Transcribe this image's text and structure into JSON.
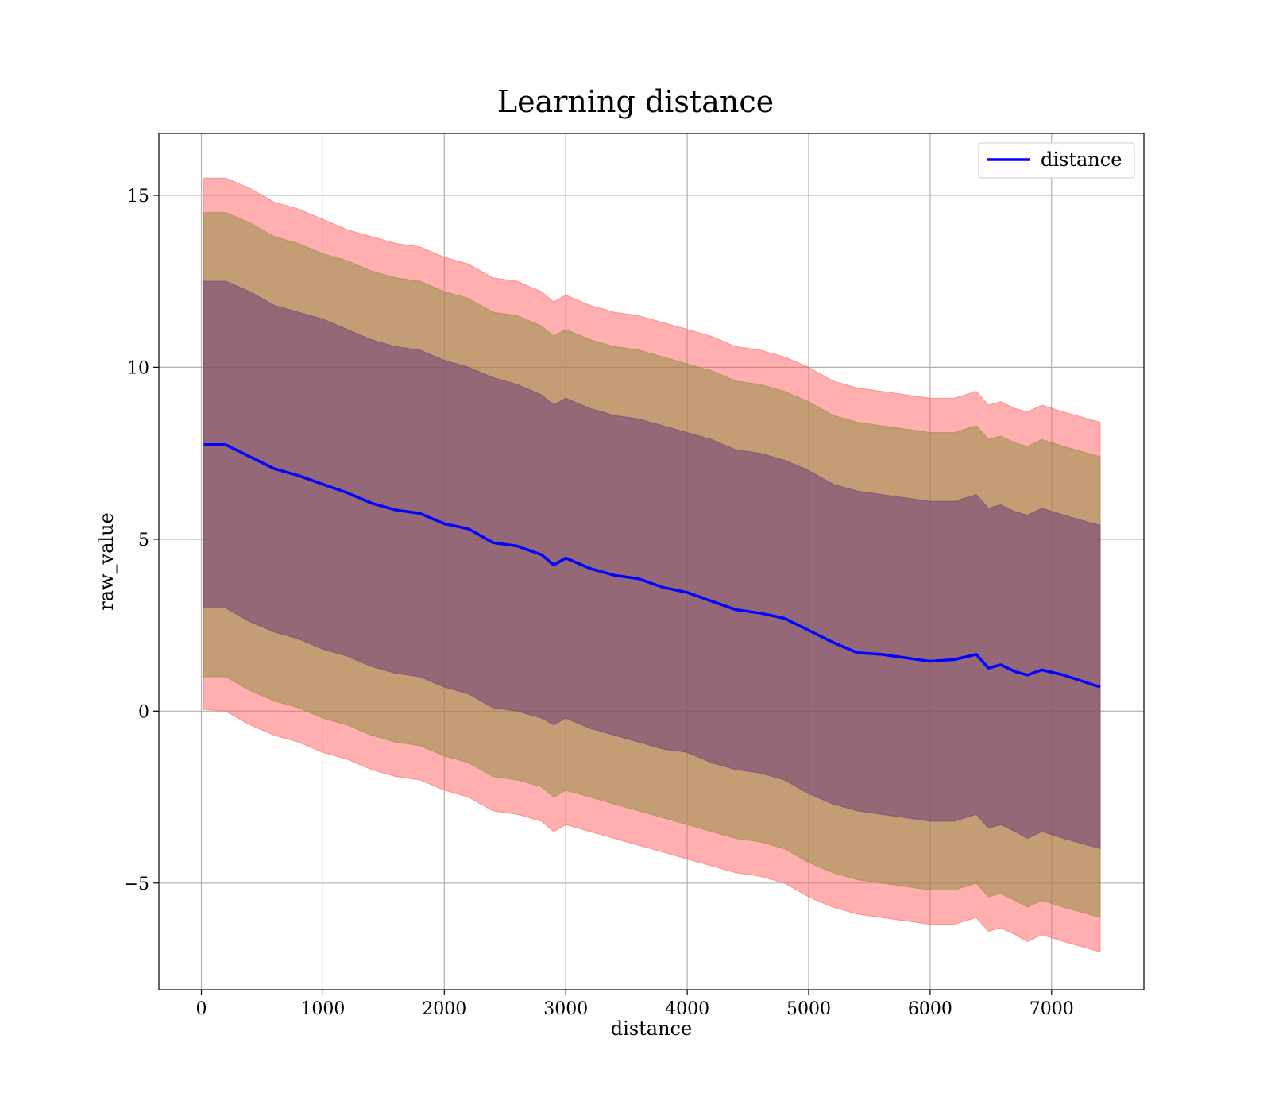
{
  "chart_data": {
    "type": "area",
    "title": "Learning distance",
    "xlabel": "distance",
    "ylabel": "raw_value",
    "xlim": [
      -350,
      7760
    ],
    "ylim": [
      -8.1,
      16.8
    ],
    "xticks": [
      0,
      1000,
      2000,
      3000,
      4000,
      5000,
      6000,
      7000
    ],
    "xtick_labels": [
      "0",
      "1000",
      "2000",
      "3000",
      "4000",
      "5000",
      "6000",
      "7000"
    ],
    "yticks": [
      -5,
      0,
      5,
      10,
      15
    ],
    "ytick_labels": [
      "−5",
      "0",
      "5",
      "10",
      "15"
    ],
    "grid": true,
    "legend": {
      "placement": "top-right",
      "entries": [
        "distance"
      ]
    },
    "colors": {
      "line": "#0000ff",
      "band_outer": "#ff6060",
      "band_middle": "#8c8c3c",
      "band_inner": "#6e3c78",
      "grid": "#b0b0b0"
    },
    "x": [
      20,
      200,
      400,
      600,
      800,
      1000,
      1200,
      1400,
      1600,
      1800,
      2000,
      2200,
      2400,
      2600,
      2800,
      2900,
      3000,
      3200,
      3400,
      3600,
      3800,
      4000,
      4200,
      4400,
      4600,
      4800,
      5000,
      5200,
      5400,
      5600,
      5800,
      6000,
      6200,
      6380,
      6480,
      6580,
      6700,
      6800,
      6920,
      7100,
      7400
    ],
    "series": [
      {
        "name": "distance",
        "values": [
          7.75,
          7.75,
          7.4,
          7.05,
          6.85,
          6.6,
          6.35,
          6.05,
          5.85,
          5.75,
          5.45,
          5.3,
          4.9,
          4.8,
          4.55,
          4.25,
          4.45,
          4.15,
          3.95,
          3.85,
          3.6,
          3.45,
          3.2,
          2.95,
          2.85,
          2.7,
          2.35,
          2.0,
          1.7,
          1.65,
          1.55,
          1.45,
          1.5,
          1.65,
          1.25,
          1.35,
          1.15,
          1.05,
          1.2,
          1.05,
          0.7
        ]
      },
      {
        "name": "",
        "role": "band-1std",
        "upper": [
          12.5,
          12.5,
          12.2,
          11.8,
          11.6,
          11.4,
          11.1,
          10.8,
          10.6,
          10.5,
          10.2,
          10.0,
          9.7,
          9.5,
          9.2,
          8.9,
          9.1,
          8.8,
          8.6,
          8.5,
          8.3,
          8.1,
          7.9,
          7.6,
          7.5,
          7.3,
          7.0,
          6.6,
          6.4,
          6.3,
          6.2,
          6.1,
          6.1,
          6.3,
          5.9,
          6.0,
          5.8,
          5.7,
          5.9,
          5.7,
          5.4
        ],
        "lower": [
          3.0,
          3.0,
          2.6,
          2.3,
          2.1,
          1.8,
          1.6,
          1.3,
          1.1,
          1.0,
          0.7,
          0.5,
          0.1,
          0.0,
          -0.2,
          -0.4,
          -0.2,
          -0.5,
          -0.7,
          -0.9,
          -1.1,
          -1.2,
          -1.5,
          -1.7,
          -1.8,
          -2.0,
          -2.4,
          -2.7,
          -2.9,
          -3.0,
          -3.1,
          -3.2,
          -3.2,
          -3.0,
          -3.4,
          -3.3,
          -3.5,
          -3.7,
          -3.5,
          -3.7,
          -4.0
        ]
      },
      {
        "name": "",
        "role": "band-2std",
        "upper": [
          14.5,
          14.5,
          14.2,
          13.8,
          13.6,
          13.3,
          13.1,
          12.8,
          12.6,
          12.5,
          12.2,
          12.0,
          11.6,
          11.5,
          11.2,
          10.9,
          11.1,
          10.8,
          10.6,
          10.5,
          10.3,
          10.1,
          9.9,
          9.6,
          9.5,
          9.3,
          9.0,
          8.6,
          8.4,
          8.3,
          8.2,
          8.1,
          8.1,
          8.3,
          7.9,
          8.0,
          7.8,
          7.7,
          7.9,
          7.7,
          7.4
        ],
        "lower": [
          1.0,
          1.0,
          0.6,
          0.3,
          0.1,
          -0.2,
          -0.4,
          -0.7,
          -0.9,
          -1.0,
          -1.3,
          -1.5,
          -1.9,
          -2.0,
          -2.2,
          -2.5,
          -2.3,
          -2.5,
          -2.7,
          -2.9,
          -3.1,
          -3.3,
          -3.5,
          -3.7,
          -3.8,
          -4.0,
          -4.4,
          -4.7,
          -4.9,
          -5.0,
          -5.1,
          -5.2,
          -5.2,
          -5.0,
          -5.4,
          -5.3,
          -5.5,
          -5.7,
          -5.5,
          -5.7,
          -6.0
        ]
      },
      {
        "name": "",
        "role": "band-3std",
        "upper": [
          15.5,
          15.5,
          15.2,
          14.8,
          14.6,
          14.3,
          14.0,
          13.8,
          13.6,
          13.5,
          13.2,
          13.0,
          12.6,
          12.5,
          12.2,
          11.9,
          12.1,
          11.8,
          11.6,
          11.5,
          11.3,
          11.1,
          10.9,
          10.6,
          10.5,
          10.3,
          10.0,
          9.6,
          9.4,
          9.3,
          9.2,
          9.1,
          9.1,
          9.3,
          8.9,
          9.0,
          8.8,
          8.7,
          8.9,
          8.7,
          8.4
        ],
        "lower": [
          0.05,
          0.0,
          -0.4,
          -0.7,
          -0.9,
          -1.2,
          -1.4,
          -1.7,
          -1.9,
          -2.0,
          -2.3,
          -2.5,
          -2.9,
          -3.0,
          -3.2,
          -3.5,
          -3.3,
          -3.5,
          -3.7,
          -3.9,
          -4.1,
          -4.3,
          -4.5,
          -4.7,
          -4.8,
          -5.0,
          -5.4,
          -5.7,
          -5.9,
          -6.0,
          -6.1,
          -6.2,
          -6.2,
          -6.0,
          -6.4,
          -6.3,
          -6.5,
          -6.7,
          -6.5,
          -6.7,
          -7.0
        ]
      }
    ]
  }
}
